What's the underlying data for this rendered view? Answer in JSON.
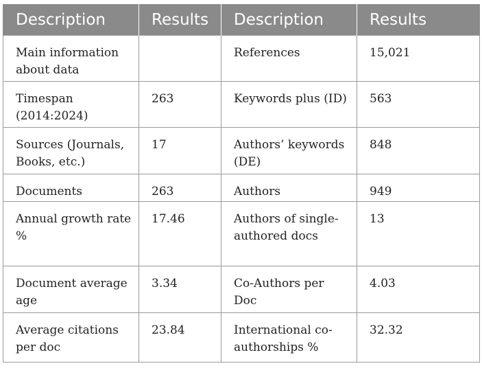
{
  "table": {
    "headers": [
      "Description",
      "Results",
      "Description",
      "Results"
    ],
    "rows": [
      [
        "Main information about data",
        "",
        "References",
        "15,021"
      ],
      [
        "Timespan (2014:2024)",
        "263",
        "Keywords plus (ID)",
        "563"
      ],
      [
        "Sources (Journals, Books, etc.)",
        "17",
        "Authors’ keywords (DE)",
        "848"
      ],
      [
        "Documents",
        "263",
        "Authors",
        "949"
      ],
      [
        "Annual growth rate %",
        "17.46",
        "Authors of single-authored docs",
        "13"
      ],
      [
        "Document average age",
        "3.34",
        "Co-Authors per Doc",
        "4.03"
      ],
      [
        "Average citations per doc",
        "23.84",
        "International co-authorships %",
        "32.32"
      ]
    ]
  }
}
